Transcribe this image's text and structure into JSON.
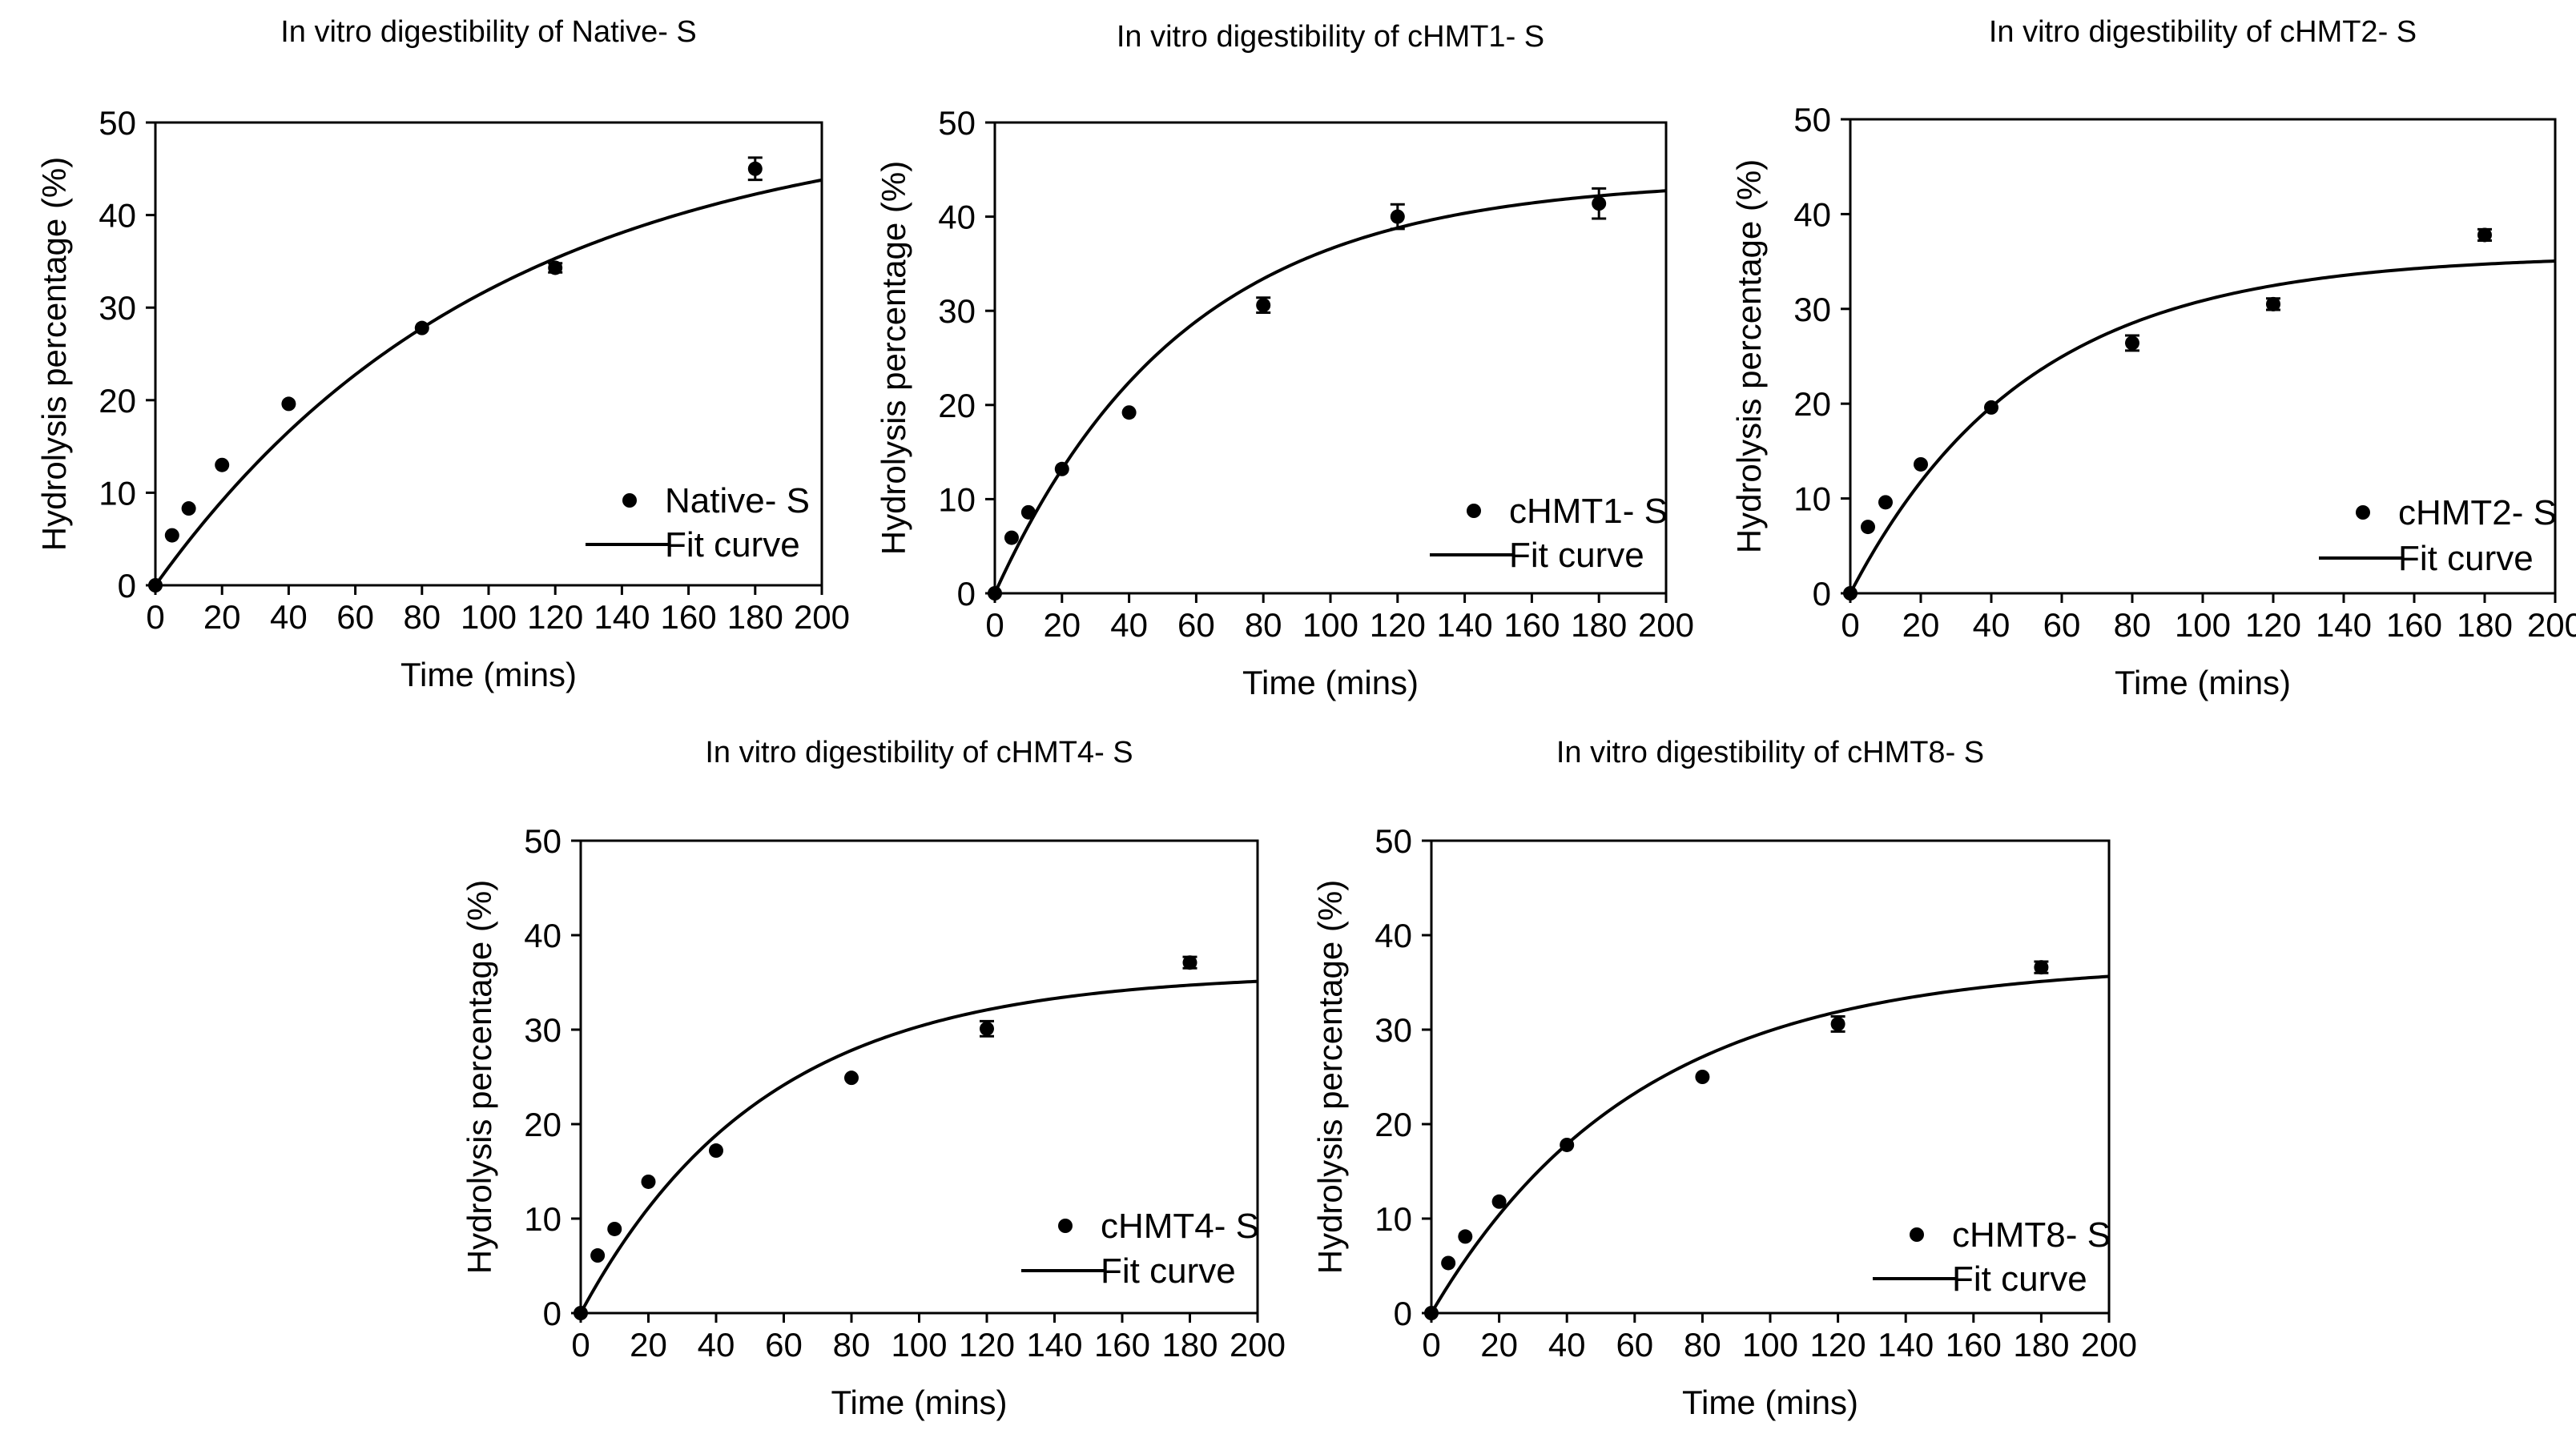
{
  "chart_data": [
    {
      "type": "scatter",
      "title": "In vitro digestibility of Native- S",
      "xlabel": "Time (mins)",
      "ylabel": "Hydrolysis percentage (%)",
      "xlim": [
        0,
        200
      ],
      "ylim": [
        0,
        50
      ],
      "xticks": [
        "0",
        "20",
        "40",
        "60",
        "80",
        "100",
        "120",
        "140",
        "160",
        "180",
        "200"
      ],
      "yticks": [
        "0",
        "10",
        "20",
        "30",
        "40",
        "50"
      ],
      "legend_position": "bottom-right",
      "series": [
        {
          "name": "Native- S",
          "kind": "points",
          "x": [
            0,
            5,
            10,
            20,
            40,
            80,
            120,
            180
          ],
          "y": [
            0,
            5.4,
            8.3,
            13.0,
            19.6,
            27.8,
            34.3,
            45.0
          ],
          "err": [
            0,
            0,
            0,
            0,
            0,
            0,
            0.5,
            1.2
          ]
        },
        {
          "name": "Fit curve",
          "kind": "line",
          "model": "exponential",
          "a": 50.8,
          "k": 0.0099
        }
      ]
    },
    {
      "type": "scatter",
      "title": "In vitro digestibility of cHMT1- S",
      "xlabel": "Time (mins)",
      "ylabel": "Hydrolysis percentage (%)",
      "xlim": [
        0,
        200
      ],
      "ylim": [
        0,
        50
      ],
      "xticks": [
        "0",
        "20",
        "40",
        "60",
        "80",
        "100",
        "120",
        "140",
        "160",
        "180",
        "200"
      ],
      "yticks": [
        "0",
        "10",
        "20",
        "30",
        "40",
        "50"
      ],
      "legend_position": "bottom-right",
      "series": [
        {
          "name": "cHMT1- S",
          "kind": "points",
          "x": [
            0,
            5,
            10,
            20,
            40,
            80,
            120,
            180
          ],
          "y": [
            0,
            5.9,
            8.6,
            13.2,
            19.2,
            30.6,
            40.0,
            41.4
          ],
          "err": [
            0,
            0,
            0,
            0,
            0,
            0.8,
            1.3,
            1.6
          ]
        },
        {
          "name": "Fit curve",
          "kind": "line",
          "model": "exponential",
          "a": 44.0,
          "k": 0.0178
        }
      ]
    },
    {
      "type": "scatter",
      "title": "In vitro digestibility of cHMT2- S",
      "xlabel": "Time (mins)",
      "ylabel": "Hydrolysis percentage (%)",
      "xlim": [
        0,
        200
      ],
      "ylim": [
        0,
        50
      ],
      "xticks": [
        "0",
        "20",
        "40",
        "60",
        "80",
        "100",
        "120",
        "140",
        "160",
        "180",
        "200"
      ],
      "yticks": [
        "0",
        "10",
        "20",
        "30",
        "40",
        "50"
      ],
      "legend_position": "bottom-right",
      "series": [
        {
          "name": "cHMT2- S",
          "kind": "points",
          "x": [
            0,
            5,
            10,
            20,
            40,
            80,
            120,
            180
          ],
          "y": [
            0,
            7.0,
            9.6,
            13.6,
            19.6,
            26.4,
            30.5,
            37.8
          ],
          "err": [
            0,
            0,
            0,
            0,
            0,
            0.8,
            0.6,
            0.6
          ]
        },
        {
          "name": "Fit curve",
          "kind": "line",
          "model": "exponential",
          "a": 35.7,
          "k": 0.02
        }
      ]
    },
    {
      "type": "scatter",
      "title": "In vitro digestibility of cHMT4- S",
      "xlabel": "Time (mins)",
      "ylabel": "Hydrolysis percentage (%)",
      "xlim": [
        0,
        200
      ],
      "ylim": [
        0,
        50
      ],
      "xticks": [
        "0",
        "20",
        "40",
        "60",
        "80",
        "100",
        "120",
        "140",
        "160",
        "180",
        "200"
      ],
      "yticks": [
        "0",
        "10",
        "20",
        "30",
        "40",
        "50"
      ],
      "legend_position": "bottom-right",
      "series": [
        {
          "name": "cHMT4- S",
          "kind": "points",
          "x": [
            0,
            5,
            10,
            20,
            40,
            80,
            120,
            180
          ],
          "y": [
            0,
            6.1,
            8.9,
            13.9,
            17.2,
            24.9,
            30.1,
            37.1
          ],
          "err": [
            0,
            0,
            0,
            0,
            0,
            0,
            0.8,
            0.6
          ]
        },
        {
          "name": "Fit curve",
          "kind": "line",
          "model": "exponential",
          "a": 36.0,
          "k": 0.0185
        }
      ]
    },
    {
      "type": "scatter",
      "title": "In vitro digestibility of cHMT8- S",
      "xlabel": "Time (mins)",
      "ylabel": "Hydrolysis percentage (%)",
      "xlim": [
        0,
        200
      ],
      "ylim": [
        0,
        50
      ],
      "xticks": [
        "0",
        "20",
        "40",
        "60",
        "80",
        "100",
        "120",
        "140",
        "160",
        "180",
        "200"
      ],
      "yticks": [
        "0",
        "10",
        "20",
        "30",
        "40",
        "50"
      ],
      "legend_position": "bottom-right",
      "series": [
        {
          "name": "cHMT8- S",
          "kind": "points",
          "x": [
            0,
            5,
            10,
            20,
            40,
            80,
            120,
            180
          ],
          "y": [
            0,
            5.3,
            8.1,
            11.8,
            17.8,
            25.0,
            30.6,
            36.6
          ],
          "err": [
            0,
            0,
            0,
            0,
            0,
            0,
            0.8,
            0.6
          ]
        },
        {
          "name": "Fit curve",
          "kind": "line",
          "model": "exponential",
          "a": 37.0,
          "k": 0.0165
        }
      ]
    }
  ]
}
